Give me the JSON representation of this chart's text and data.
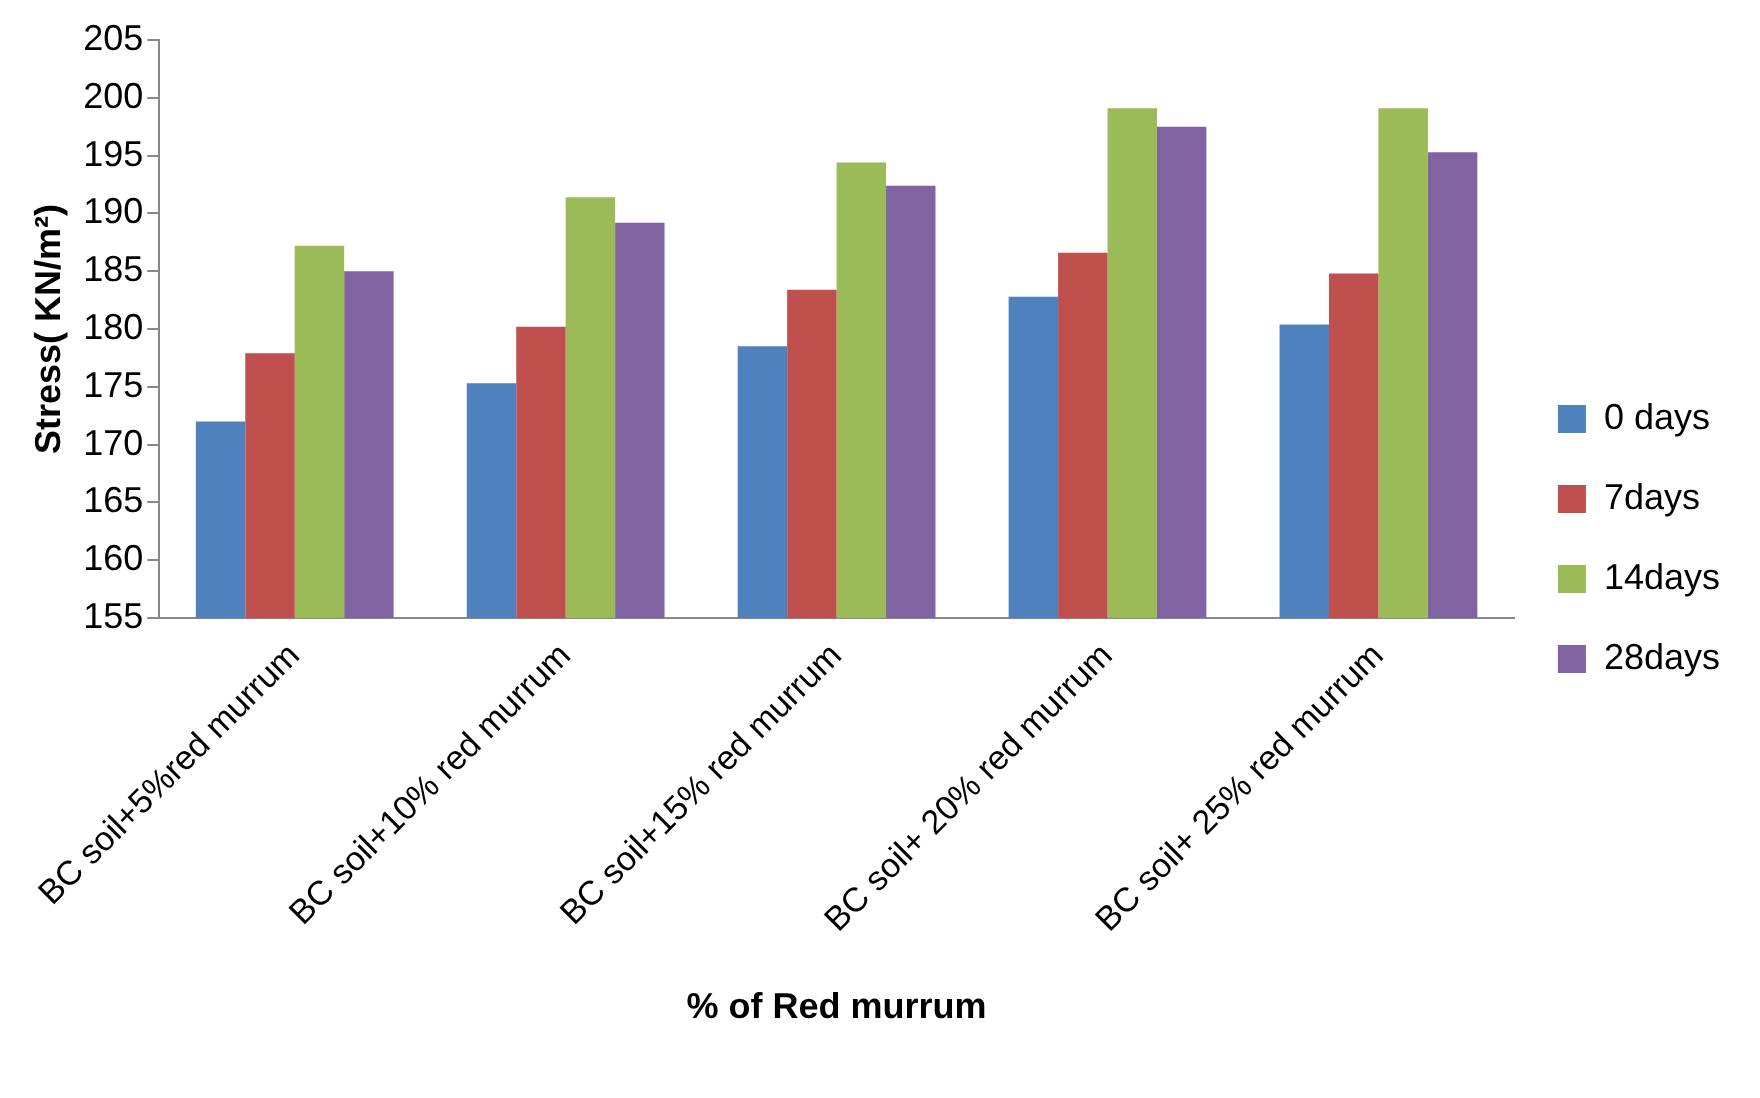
{
  "chart_data": {
    "type": "bar",
    "xlabel": "% of Red murrum",
    "ylabel": "Stress( KN/m²)",
    "categories": [
      "BC soil+5%red murrum",
      "BC soil+10% red murrum",
      "BC soil+15% red murrum",
      "BC soil+ 20% red murrum",
      "BC soil+ 25% red murrum"
    ],
    "series": [
      {
        "name": "0 days",
        "color": "#4f81bd",
        "values": [
          172,
          175.3,
          178.5,
          182.8,
          180.4
        ]
      },
      {
        "name": "7days",
        "color": "#c0504d",
        "values": [
          177.9,
          180.2,
          183.4,
          186.6,
          184.8
        ]
      },
      {
        "name": "14days",
        "color": "#9bbb59",
        "values": [
          187.2,
          191.4,
          194.4,
          199.1,
          199.1
        ]
      },
      {
        "name": "28days",
        "color": "#8064a2",
        "values": [
          185,
          189.2,
          192.4,
          197.5,
          195.3
        ]
      }
    ],
    "ylim": [
      155,
      205
    ],
    "yticks": [
      155,
      160,
      165,
      170,
      175,
      180,
      185,
      190,
      195,
      200,
      205
    ],
    "grid": false,
    "legend": "right"
  }
}
